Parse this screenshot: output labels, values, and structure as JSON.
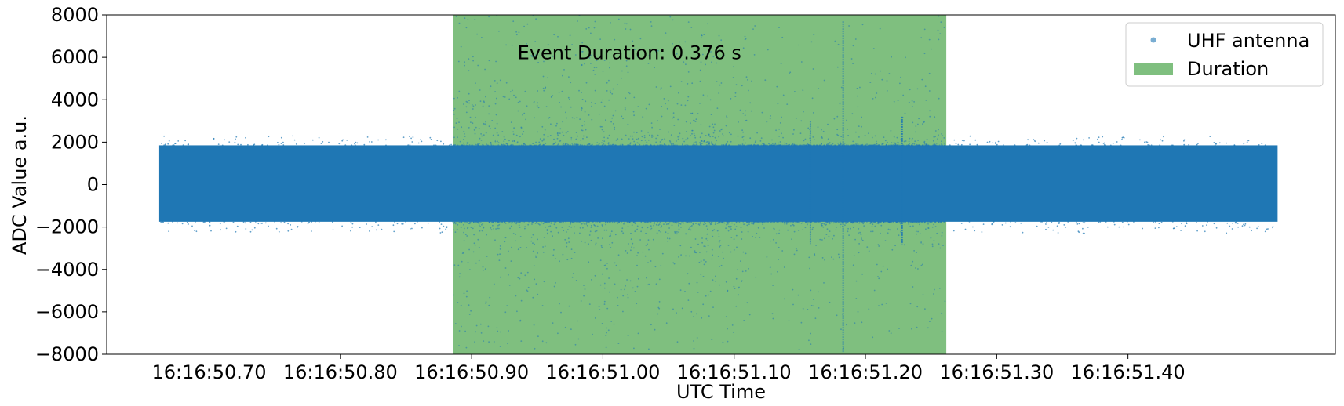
{
  "chart_data": {
    "type": "scatter",
    "title": "",
    "xlabel": "UTC Time",
    "ylabel": "ADC Value a.u.",
    "xlim": [
      "16:16:50.622",
      "16:16:51.558"
    ],
    "ylim": [
      -8000,
      8000
    ],
    "x_ticks": [
      "16:16:50.70",
      "16:16:50.80",
      "16:16:50.90",
      "16:16:51.00",
      "16:16:51.10",
      "16:16:51.20",
      "16:16:51.30",
      "16:16:51.40"
    ],
    "y_ticks": [
      8000,
      6000,
      4000,
      2000,
      0,
      -2000,
      -4000,
      -6000,
      -8000
    ],
    "grid": false,
    "legend": {
      "position": "upper right",
      "entries": [
        {
          "label": "UHF antenna",
          "type": "marker",
          "color": "#1f77b4"
        },
        {
          "label": "Duration",
          "type": "patch",
          "color": "#7fbf7f"
        }
      ]
    },
    "series": [
      {
        "name": "UHF antenna",
        "color": "#1f77b4",
        "x_range": [
          "16:16:50.662",
          "16:16:51.514"
        ],
        "dense_band": [
          -1750,
          1850
        ],
        "baseline_outlier_extent": [
          -2300,
          2300
        ],
        "event_outlier_extent": [
          -7800,
          8000
        ],
        "spikes": [
          {
            "x": "16:16:51.183",
            "y_min": -7900,
            "y_max": 7700
          },
          {
            "x": "16:16:51.158",
            "y_min": -2800,
            "y_max": 3000
          },
          {
            "x": "16:16:51.228",
            "y_min": -2800,
            "y_max": 3200
          }
        ]
      }
    ],
    "spans": [
      {
        "name": "Duration",
        "x_start": "16:16:50.8856",
        "x_end": "16:16:51.2616",
        "color": "#7fbf7f"
      }
    ],
    "annotations": [
      {
        "text": "Event Duration: 0.376 s",
        "x": "16:16:50.935",
        "y": 6200
      }
    ]
  }
}
